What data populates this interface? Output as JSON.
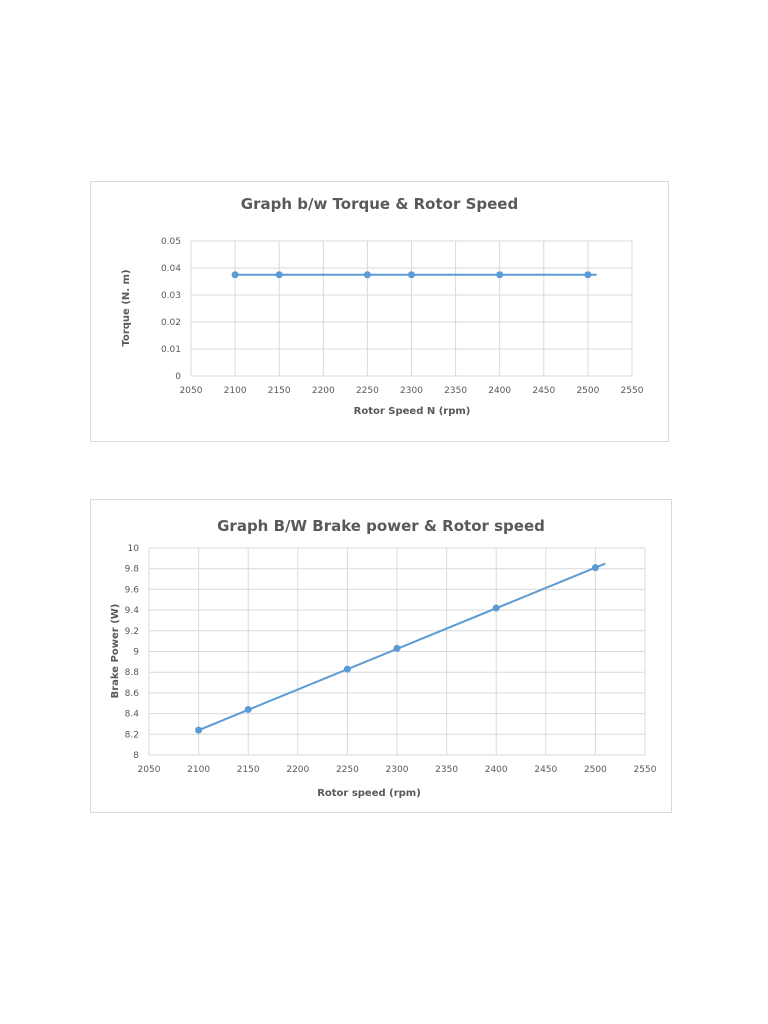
{
  "charts": [
    {
      "title": "Graph b/w Torque & Rotor Speed",
      "chart_data": {
        "type": "line",
        "title": "Graph b/w Torque & Rotor Speed",
        "xlabel": "Rotor Speed N (rpm)",
        "ylabel": "Torque (N. m)",
        "xlim": [
          2050,
          2550
        ],
        "ylim": [
          0,
          0.05
        ],
        "x_ticks": [
          "2050",
          "2100",
          "2150",
          "2200",
          "2250",
          "2300",
          "2350",
          "2400",
          "2450",
          "2500",
          "2550"
        ],
        "y_ticks": [
          "0",
          "0.01",
          "0.02",
          "0.03",
          "0.04",
          "0.05"
        ],
        "grid": true,
        "legend": "none",
        "series": [
          {
            "color": "#5b9bd5",
            "x": [
              2100,
              2150,
              2250,
              2300,
              2400,
              2500
            ],
            "y": [
              0.0375,
              0.0375,
              0.0375,
              0.0375,
              0.0375,
              0.0375
            ],
            "trendline": {
              "x": [
                2100,
                2510
              ],
              "y": [
                0.0375,
                0.0375
              ]
            }
          }
        ]
      }
    },
    {
      "title": "Graph B/W Brake power & Rotor speed",
      "chart_data": {
        "type": "line",
        "title": "Graph B/W Brake power & Rotor speed",
        "xlabel": "Rotor speed (rpm)",
        "ylabel": "Brake Power (W)",
        "xlim": [
          2050,
          2550
        ],
        "ylim": [
          8,
          10
        ],
        "x_ticks": [
          "2050",
          "2100",
          "2150",
          "2200",
          "2250",
          "2300",
          "2350",
          "2400",
          "2450",
          "2500",
          "2550"
        ],
        "y_ticks": [
          "8",
          "8.2",
          "8.4",
          "8.6",
          "8.8",
          "9",
          "9.2",
          "9.4",
          "9.6",
          "9.8",
          "10"
        ],
        "grid": true,
        "legend": "none",
        "series": [
          {
            "color": "#5b9bd5",
            "x": [
              2100,
              2150,
              2250,
              2300,
              2400,
              2500
            ],
            "y": [
              8.24,
              8.44,
              8.83,
              9.03,
              9.42,
              9.81
            ],
            "trendline": {
              "x": [
                2100,
                2510
              ],
              "y": [
                8.24,
                9.85
              ]
            }
          }
        ]
      }
    }
  ]
}
